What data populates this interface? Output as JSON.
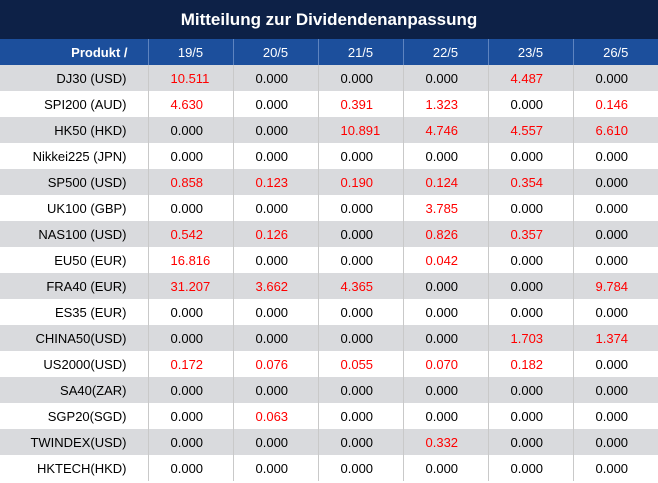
{
  "title": "Mitteilung zur Dividendenanpassung",
  "table": {
    "product_header": "Produkt /",
    "dates": [
      "19/5",
      "20/5",
      "21/5",
      "22/5",
      "23/5",
      "26/5"
    ],
    "rows": [
      {
        "product": "DJ30 (USD)",
        "values": [
          "10.511",
          "0.000",
          "0.000",
          "0.000",
          "4.487",
          "0.000"
        ]
      },
      {
        "product": "SPI200 (AUD)",
        "values": [
          "4.630",
          "0.000",
          "0.391",
          "1.323",
          "0.000",
          "0.146"
        ]
      },
      {
        "product": "HK50 (HKD)",
        "values": [
          "0.000",
          "0.000",
          "10.891",
          "4.746",
          "4.557",
          "6.610"
        ]
      },
      {
        "product": "Nikkei225 (JPN)",
        "values": [
          "0.000",
          "0.000",
          "0.000",
          "0.000",
          "0.000",
          "0.000"
        ]
      },
      {
        "product": "SP500 (USD)",
        "values": [
          "0.858",
          "0.123",
          "0.190",
          "0.124",
          "0.354",
          "0.000"
        ]
      },
      {
        "product": "UK100 (GBP)",
        "values": [
          "0.000",
          "0.000",
          "0.000",
          "3.785",
          "0.000",
          "0.000"
        ]
      },
      {
        "product": "NAS100 (USD)",
        "values": [
          "0.542",
          "0.126",
          "0.000",
          "0.826",
          "0.357",
          "0.000"
        ]
      },
      {
        "product": "EU50 (EUR)",
        "values": [
          "16.816",
          "0.000",
          "0.000",
          "0.042",
          "0.000",
          "0.000"
        ]
      },
      {
        "product": "FRA40 (EUR)",
        "values": [
          "31.207",
          "3.662",
          "4.365",
          "0.000",
          "0.000",
          "9.784"
        ]
      },
      {
        "product": "ES35 (EUR)",
        "values": [
          "0.000",
          "0.000",
          "0.000",
          "0.000",
          "0.000",
          "0.000"
        ]
      },
      {
        "product": "CHINA50(USD)",
        "values": [
          "0.000",
          "0.000",
          "0.000",
          "0.000",
          "1.703",
          "1.374"
        ]
      },
      {
        "product": "US2000(USD)",
        "values": [
          "0.172",
          "0.076",
          "0.055",
          "0.070",
          "0.182",
          "0.000"
        ]
      },
      {
        "product": "SA40(ZAR)",
        "values": [
          "0.000",
          "0.000",
          "0.000",
          "0.000",
          "0.000",
          "0.000"
        ]
      },
      {
        "product": "SGP20(SGD)",
        "values": [
          "0.000",
          "0.063",
          "0.000",
          "0.000",
          "0.000",
          "0.000"
        ]
      },
      {
        "product": "TWINDEX(USD)",
        "values": [
          "0.000",
          "0.000",
          "0.000",
          "0.332",
          "0.000",
          "0.000"
        ]
      },
      {
        "product": "HKTECH(HKD)",
        "values": [
          "0.000",
          "0.000",
          "0.000",
          "0.000",
          "0.000",
          "0.000"
        ]
      }
    ]
  },
  "colors": {
    "title_bg": "#0d2147",
    "header_bg": "#1c4f9c",
    "row_alt_bg": "#d9dadd",
    "positive_value": "#ff0000"
  }
}
